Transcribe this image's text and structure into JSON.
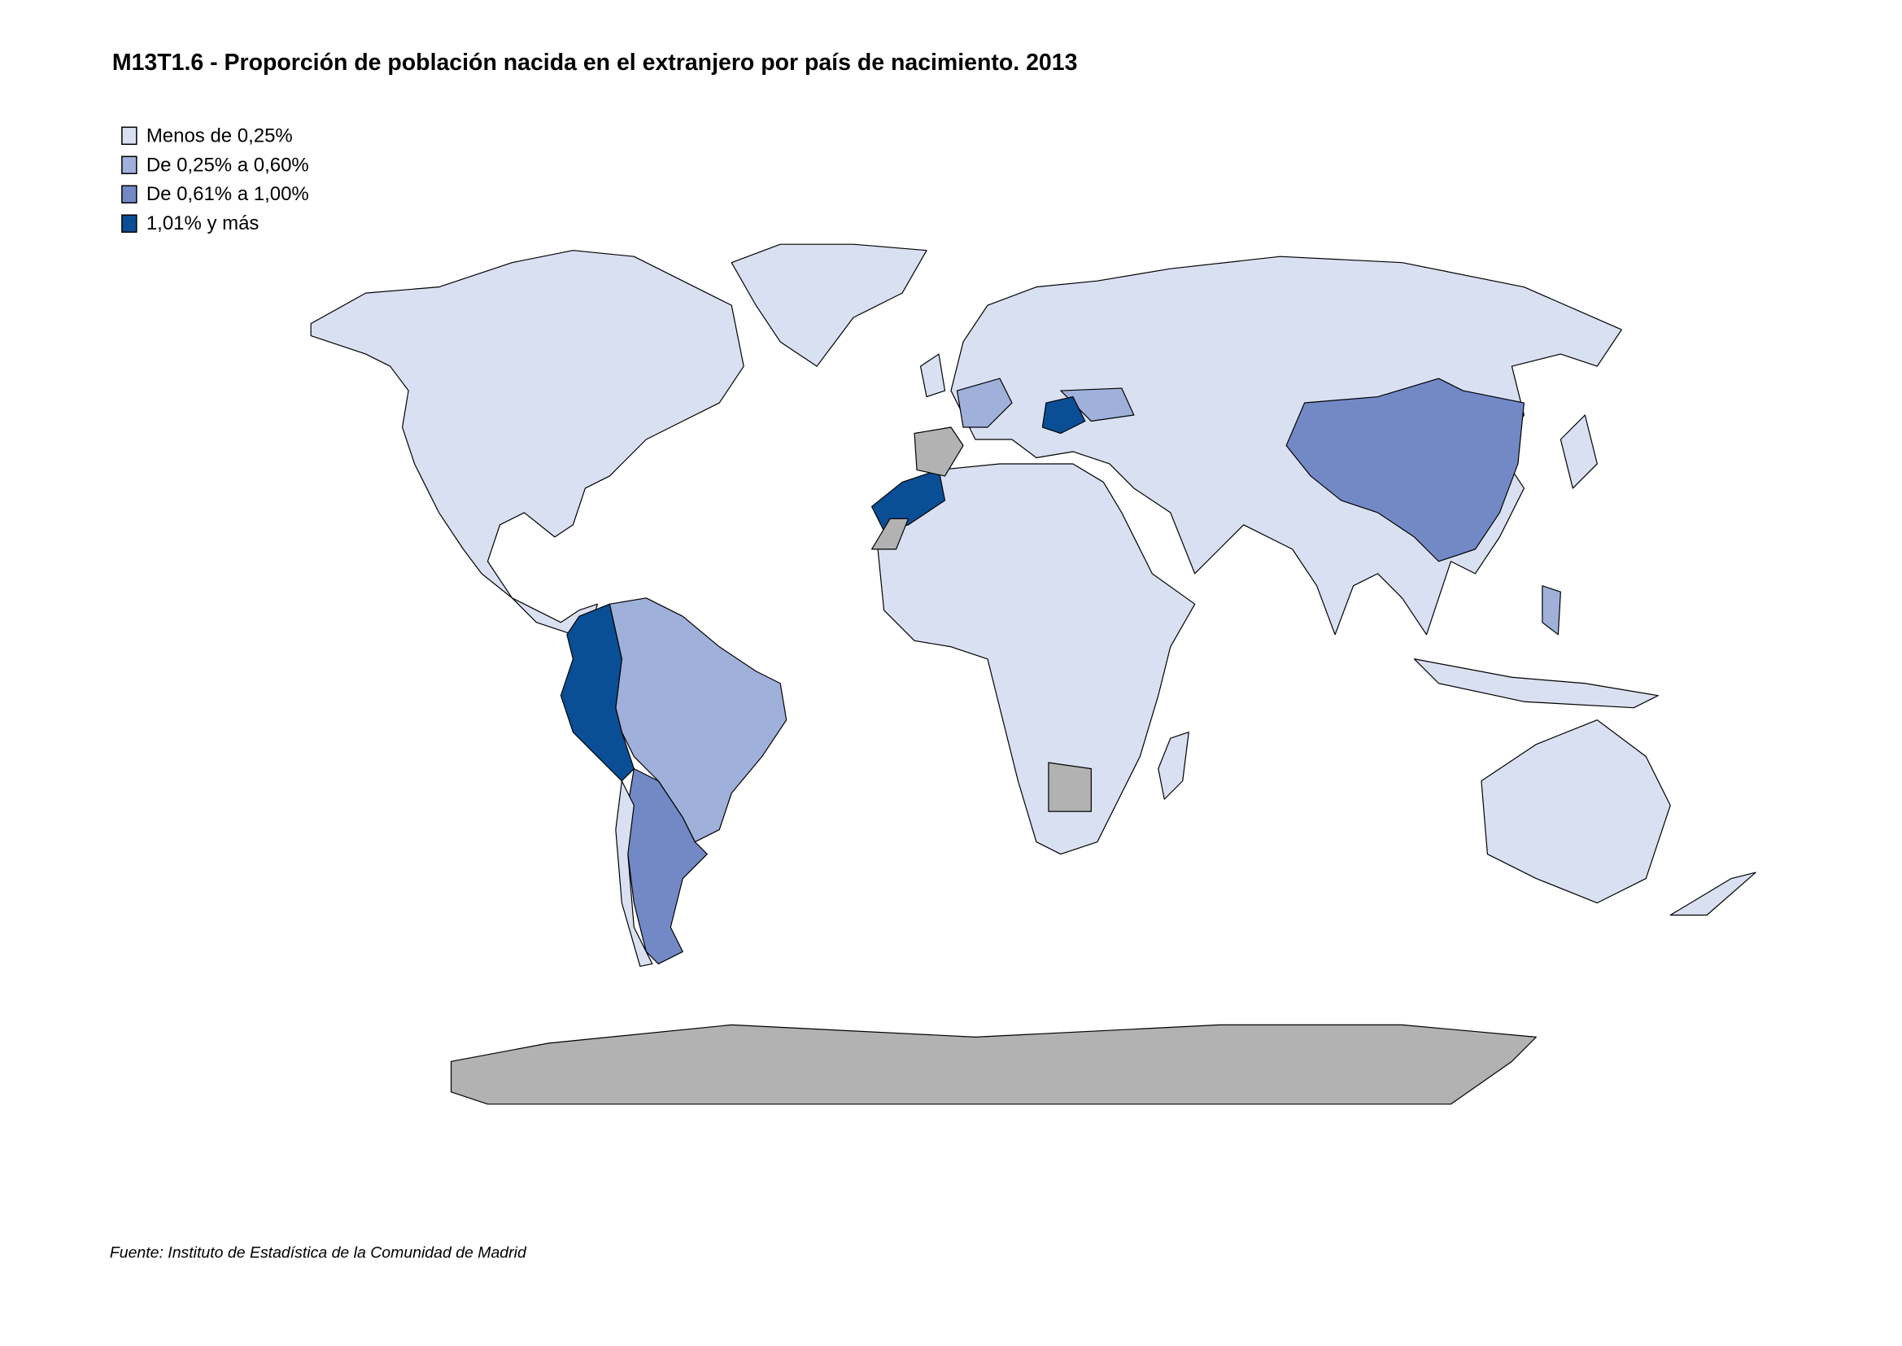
{
  "title": "M13T1.6 - Proporción de población nacida en el extranjero por país de nacimiento. 2013",
  "legend": {
    "items": [
      {
        "label": "Menos de 0,25%",
        "color": "#d9e0f2"
      },
      {
        "label": "De 0,25% a 0,60%",
        "color": "#9fb0da"
      },
      {
        "label": "De 0,61% a 1,00%",
        "color": "#7389c6"
      },
      {
        "label": "1,01%  y más",
        "color": "#0a4f96"
      }
    ]
  },
  "source": "Fuente: Instituto de Estadística de la Comunidad de Madrid"
}
